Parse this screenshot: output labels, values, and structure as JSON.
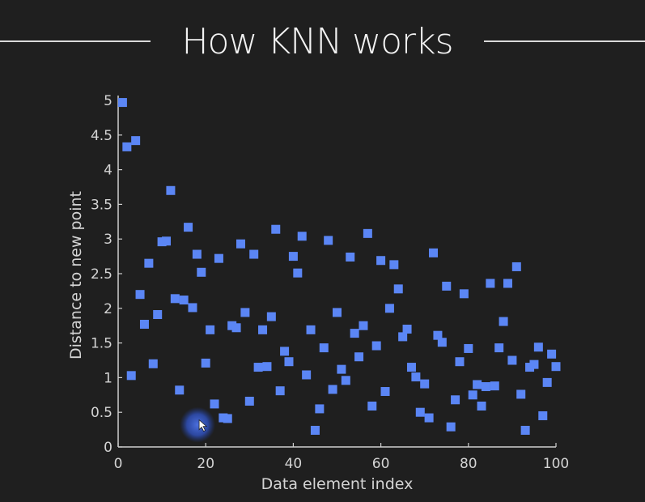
{
  "chart_data": {
    "type": "scatter",
    "title": "How KNN works",
    "xlabel": "Data element index",
    "ylabel": "Distance to new point",
    "xlim": [
      0,
      100
    ],
    "ylim": [
      0,
      5
    ],
    "xticks": [
      0,
      20,
      40,
      60,
      80,
      100
    ],
    "yticks": [
      0,
      0.5,
      1,
      1.5,
      2,
      2.5,
      3,
      3.5,
      4,
      4.5,
      5
    ],
    "grid": false,
    "marker_color": "#5b86f5",
    "x": [
      1,
      2,
      3,
      4,
      5,
      6,
      7,
      8,
      9,
      10,
      11,
      12,
      13,
      14,
      15,
      16,
      17,
      18,
      19,
      20,
      21,
      22,
      23,
      24,
      25,
      26,
      27,
      28,
      29,
      30,
      31,
      32,
      33,
      34,
      35,
      36,
      37,
      38,
      39,
      40,
      41,
      42,
      43,
      44,
      45,
      46,
      47,
      48,
      49,
      50,
      51,
      52,
      53,
      54,
      55,
      56,
      57,
      58,
      59,
      60,
      61,
      62,
      63,
      64,
      65,
      66,
      67,
      68,
      69,
      70,
      71,
      72,
      73,
      74,
      75,
      76,
      77,
      78,
      79,
      80,
      81,
      82,
      83,
      84,
      85,
      86,
      87,
      88,
      89,
      90,
      91,
      92,
      93,
      94,
      95,
      96,
      97,
      98,
      99,
      100
    ],
    "y": [
      4.97,
      4.33,
      1.03,
      4.42,
      2.2,
      1.77,
      2.65,
      1.2,
      1.91,
      2.96,
      2.97,
      3.7,
      2.14,
      0.82,
      2.12,
      3.17,
      2.01,
      2.78,
      2.52,
      1.21,
      1.69,
      0.62,
      2.72,
      0.42,
      0.41,
      1.75,
      1.72,
      2.93,
      1.94,
      0.66,
      2.78,
      1.15,
      1.69,
      1.16,
      1.88,
      3.14,
      0.81,
      1.38,
      1.23,
      2.75,
      2.51,
      3.04,
      1.04,
      1.69,
      0.24,
      0.55,
      1.43,
      2.98,
      0.83,
      1.94,
      1.12,
      0.96,
      2.74,
      1.64,
      1.3,
      1.75,
      3.08,
      0.59,
      1.46,
      2.69,
      0.8,
      2.0,
      2.63,
      2.28,
      1.59,
      1.7,
      1.15,
      1.01,
      0.5,
      0.91,
      0.42,
      2.8,
      1.61,
      1.51,
      2.32,
      0.29,
      0.68,
      1.23,
      2.21,
      1.42,
      0.75,
      0.9,
      0.59,
      0.87,
      2.36,
      0.88,
      1.43,
      1.81,
      2.36,
      1.25,
      2.6,
      0.76,
      0.24,
      1.15,
      1.19,
      1.44,
      0.45,
      0.93,
      1.34,
      1.16
    ]
  },
  "cursor": {
    "icon": "mouse-pointer-icon",
    "x": 18.5,
    "y": 0.32,
    "halo_color": "#3a5fd0"
  }
}
